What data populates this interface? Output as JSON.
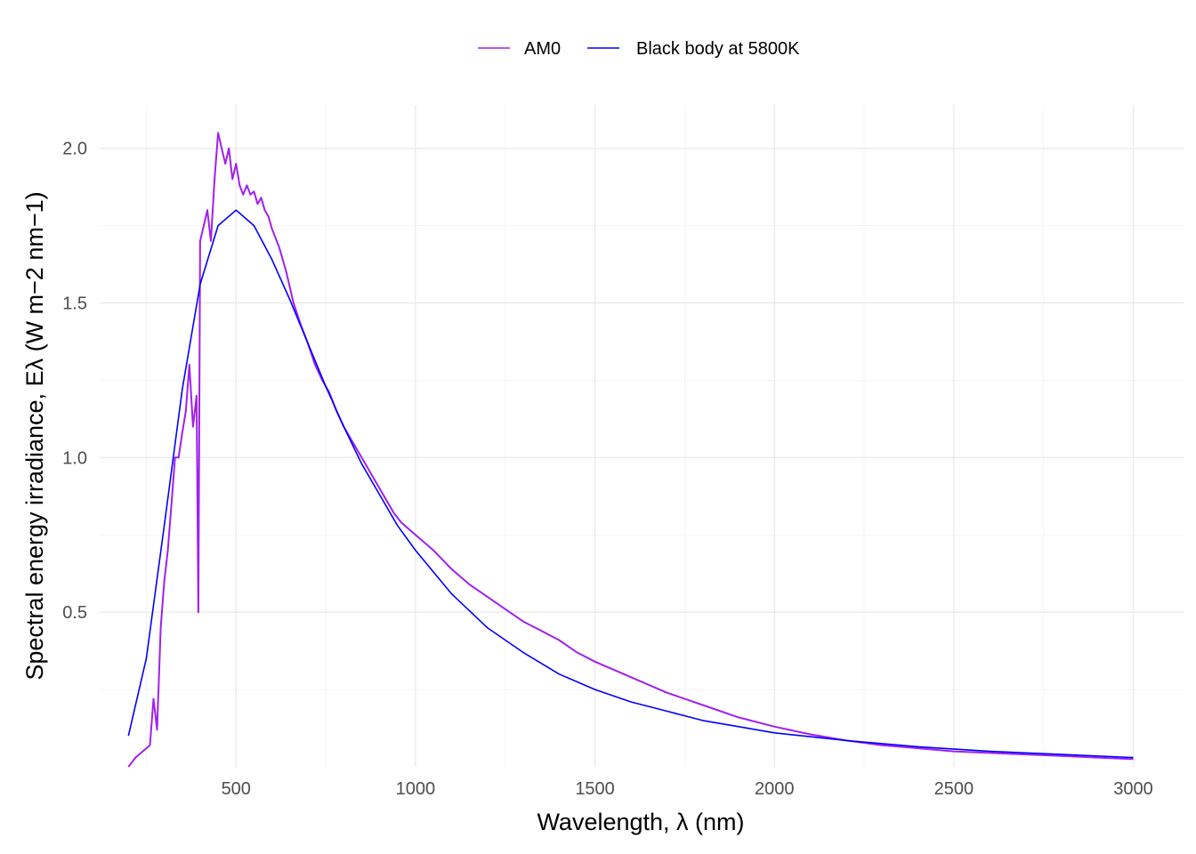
{
  "chart_data": {
    "type": "line",
    "title": "",
    "xlabel": "Wavelength,  λ (nm)",
    "ylabel": "Spectral energy irradiance,  Eλ (W m−2 nm−1)",
    "xlim": [
      120,
      3140
    ],
    "ylim": [
      0,
      2.14
    ],
    "x_ticks": [
      500,
      1000,
      1500,
      2000,
      2500,
      3000
    ],
    "y_ticks": [
      0.5,
      1.0,
      1.5,
      2.0
    ],
    "x_tick_labels": [
      "500",
      "1000",
      "1500",
      "2000",
      "2500",
      "3000"
    ],
    "y_tick_labels": [
      "0.5",
      "1.0",
      "1.5",
      "2.0"
    ],
    "grid": true,
    "legend_position": "top",
    "series": [
      {
        "name": "AM0",
        "color": "#a020f0",
        "x": [
          200,
          220,
          240,
          260,
          270,
          280,
          290,
          300,
          310,
          320,
          330,
          340,
          350,
          360,
          370,
          380,
          390,
          395,
          400,
          410,
          420,
          430,
          440,
          450,
          460,
          470,
          480,
          490,
          500,
          510,
          520,
          530,
          540,
          550,
          560,
          570,
          580,
          590,
          600,
          620,
          640,
          660,
          680,
          700,
          720,
          740,
          760,
          780,
          800,
          820,
          840,
          860,
          880,
          900,
          920,
          940,
          960,
          980,
          1000,
          1050,
          1100,
          1150,
          1200,
          1250,
          1300,
          1350,
          1400,
          1450,
          1500,
          1600,
          1700,
          1800,
          1900,
          2000,
          2100,
          2200,
          2300,
          2400,
          2500,
          2600,
          2700,
          2800,
          2900,
          3000
        ],
        "y": [
          0.0,
          0.03,
          0.05,
          0.07,
          0.22,
          0.12,
          0.45,
          0.6,
          0.7,
          0.85,
          1.0,
          1.0,
          1.08,
          1.15,
          1.3,
          1.1,
          1.2,
          0.5,
          1.7,
          1.75,
          1.8,
          1.7,
          1.9,
          2.05,
          2.0,
          1.95,
          2.0,
          1.9,
          1.95,
          1.88,
          1.85,
          1.88,
          1.85,
          1.86,
          1.82,
          1.84,
          1.8,
          1.78,
          1.74,
          1.68,
          1.6,
          1.5,
          1.43,
          1.37,
          1.3,
          1.25,
          1.21,
          1.15,
          1.1,
          1.06,
          1.02,
          0.98,
          0.94,
          0.9,
          0.86,
          0.82,
          0.79,
          0.77,
          0.75,
          0.7,
          0.64,
          0.59,
          0.55,
          0.51,
          0.47,
          0.44,
          0.41,
          0.37,
          0.34,
          0.29,
          0.24,
          0.2,
          0.16,
          0.13,
          0.105,
          0.085,
          0.07,
          0.06,
          0.05,
          0.045,
          0.04,
          0.035,
          0.03,
          0.025
        ]
      },
      {
        "name": "Black body at 5800K",
        "color": "#0000ff",
        "x": [
          200,
          250,
          300,
          350,
          400,
          450,
          500,
          550,
          600,
          650,
          700,
          750,
          800,
          850,
          900,
          950,
          1000,
          1100,
          1200,
          1300,
          1400,
          1500,
          1600,
          1700,
          1800,
          1900,
          2000,
          2200,
          2400,
          2600,
          2800,
          3000
        ],
        "y": [
          0.1,
          0.35,
          0.78,
          1.22,
          1.56,
          1.75,
          1.8,
          1.75,
          1.64,
          1.51,
          1.37,
          1.23,
          1.1,
          0.98,
          0.88,
          0.78,
          0.7,
          0.56,
          0.45,
          0.37,
          0.3,
          0.25,
          0.21,
          0.18,
          0.15,
          0.13,
          0.11,
          0.085,
          0.065,
          0.05,
          0.04,
          0.03
        ]
      }
    ]
  }
}
